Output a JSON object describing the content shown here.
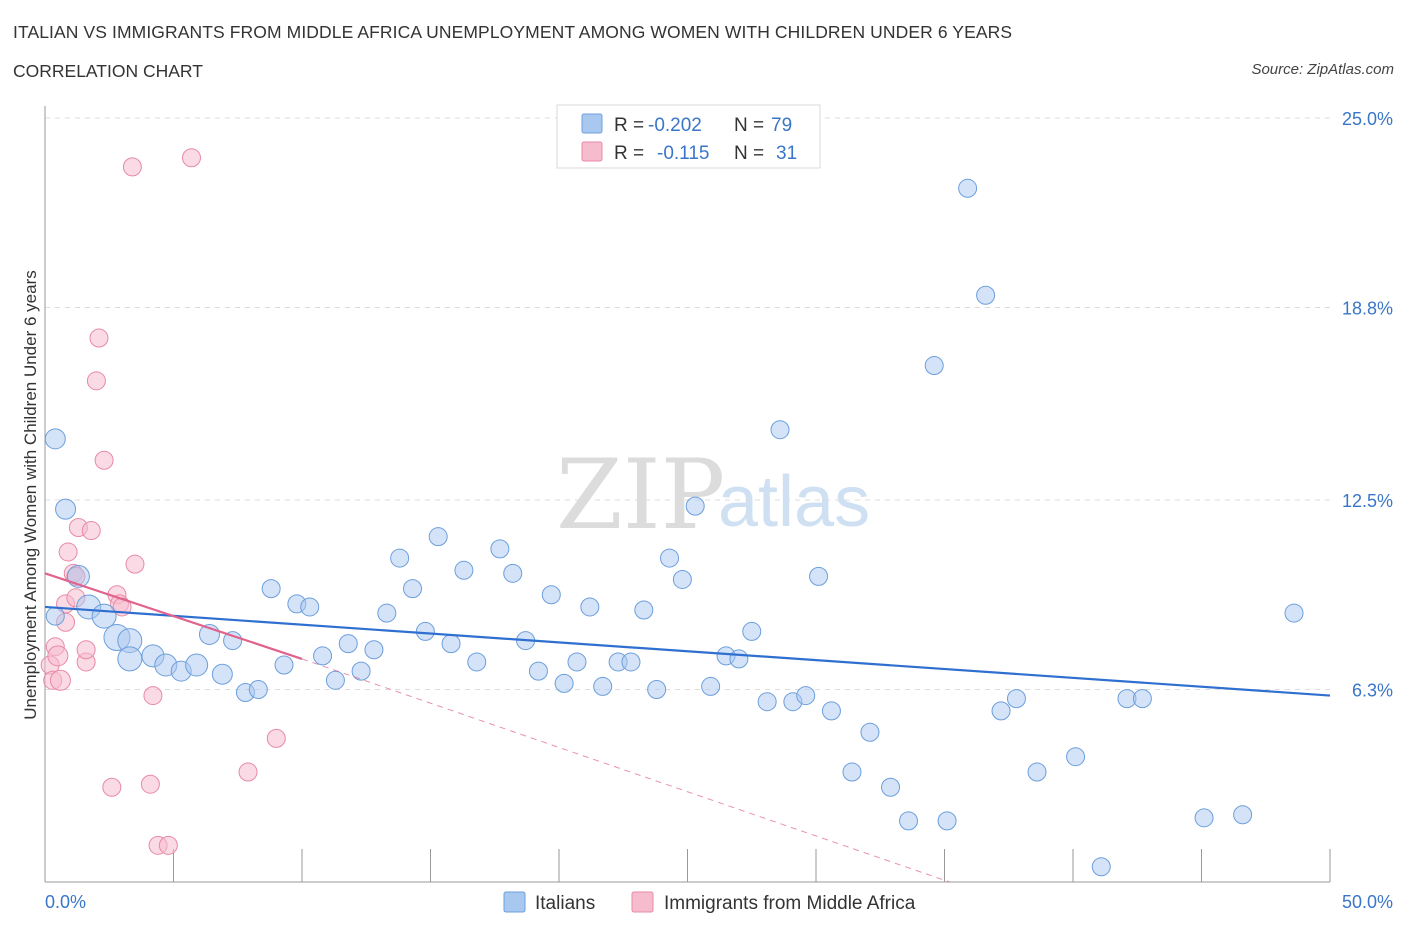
{
  "header": {
    "title": "ITALIAN VS IMMIGRANTS FROM MIDDLE AFRICA UNEMPLOYMENT AMONG WOMEN WITH CHILDREN UNDER 6 YEARS",
    "subtitle": "CORRELATION CHART",
    "source": "Source: ZipAtlas.com"
  },
  "watermark": {
    "zip": "ZIP",
    "atlas": "atlas"
  },
  "stats": {
    "r_label": "R =",
    "n_label": "N =",
    "rows": [
      {
        "r": "-0.202",
        "n": "79",
        "color": "#a9c8f0"
      },
      {
        "r": "-0.115",
        "n": "31",
        "color": "#f6bccd"
      }
    ]
  },
  "legend": {
    "items": [
      {
        "label": "Italians",
        "color": "#a9c8f0"
      },
      {
        "label": "Immigrants from Middle Africa",
        "color": "#f6bccd"
      }
    ]
  },
  "colors": {
    "blue_fill": "#a9c8f0",
    "blue_stroke": "#6c9fdc",
    "blue_line": "#2f6fd0",
    "pink_fill": "#f6bccd",
    "pink_stroke": "#e88aa6",
    "pink_line": "#e0628d",
    "grid": "#dcdcdc",
    "axis_text": "#3a76c8"
  },
  "chart_data": {
    "type": "scatter",
    "title": "ITALIAN VS IMMIGRANTS FROM MIDDLE AFRICA UNEMPLOYMENT AMONG WOMEN WITH CHILDREN UNDER 6 YEARS",
    "xlabel": "",
    "ylabel": "Unemployment Among Women with Children Under 6 years",
    "xlim": [
      0,
      50
    ],
    "ylim": [
      0,
      25
    ],
    "x_tick_labels": [
      "0.0%",
      "50.0%"
    ],
    "y_ticks": [
      6.3,
      12.5,
      18.8,
      25.0
    ],
    "y_tick_labels": [
      "6.3%",
      "12.5%",
      "18.8%",
      "25.0%"
    ],
    "grid": "horizontal dashed",
    "legend_position": "bottom",
    "series": [
      {
        "name": "Italians",
        "r": -0.202,
        "n": 79,
        "trend": {
          "x": [
            0,
            50
          ],
          "y": [
            9.0,
            6.1
          ]
        },
        "points": [
          [
            0.4,
            14.5
          ],
          [
            0.8,
            12.2
          ],
          [
            1.3,
            10.0
          ],
          [
            1.7,
            9.0
          ],
          [
            2.3,
            8.7
          ],
          [
            2.8,
            8.0
          ],
          [
            3.3,
            7.9
          ],
          [
            3.3,
            7.3
          ],
          [
            4.2,
            7.4
          ],
          [
            4.7,
            7.1
          ],
          [
            5.3,
            6.9
          ],
          [
            5.9,
            7.1
          ],
          [
            6.4,
            8.1
          ],
          [
            6.9,
            6.8
          ],
          [
            7.3,
            7.9
          ],
          [
            7.8,
            6.2
          ],
          [
            8.3,
            6.3
          ],
          [
            8.8,
            9.6
          ],
          [
            9.3,
            7.1
          ],
          [
            9.8,
            9.1
          ],
          [
            10.3,
            9.0
          ],
          [
            10.8,
            7.4
          ],
          [
            11.3,
            6.6
          ],
          [
            11.8,
            7.8
          ],
          [
            12.3,
            6.9
          ],
          [
            12.8,
            7.6
          ],
          [
            13.3,
            8.8
          ],
          [
            13.8,
            10.6
          ],
          [
            14.3,
            9.6
          ],
          [
            14.8,
            8.2
          ],
          [
            15.3,
            11.3
          ],
          [
            15.8,
            7.8
          ],
          [
            16.3,
            10.2
          ],
          [
            16.8,
            7.2
          ],
          [
            17.7,
            10.9
          ],
          [
            18.2,
            10.1
          ],
          [
            18.7,
            7.9
          ],
          [
            19.2,
            6.9
          ],
          [
            19.7,
            9.4
          ],
          [
            20.2,
            6.5
          ],
          [
            20.7,
            7.2
          ],
          [
            21.2,
            9.0
          ],
          [
            21.7,
            6.4
          ],
          [
            22.3,
            7.2
          ],
          [
            22.8,
            7.2
          ],
          [
            23.3,
            8.9
          ],
          [
            23.8,
            6.3
          ],
          [
            24.3,
            10.6
          ],
          [
            24.8,
            9.9
          ],
          [
            25.3,
            12.3
          ],
          [
            25.9,
            6.4
          ],
          [
            26.5,
            7.4
          ],
          [
            27.0,
            7.3
          ],
          [
            27.5,
            8.2
          ],
          [
            28.1,
            5.9
          ],
          [
            28.6,
            14.8
          ],
          [
            29.1,
            5.9
          ],
          [
            29.6,
            6.1
          ],
          [
            30.1,
            10.0
          ],
          [
            30.6,
            5.6
          ],
          [
            31.4,
            3.6
          ],
          [
            32.1,
            4.9
          ],
          [
            32.9,
            3.1
          ],
          [
            33.6,
            2.0
          ],
          [
            34.6,
            16.9
          ],
          [
            35.1,
            2.0
          ],
          [
            35.9,
            22.7
          ],
          [
            36.6,
            19.2
          ],
          [
            37.2,
            5.6
          ],
          [
            37.8,
            6.0
          ],
          [
            38.6,
            3.6
          ],
          [
            40.1,
            4.1
          ],
          [
            41.1,
            0.5
          ],
          [
            42.1,
            6.0
          ],
          [
            42.7,
            6.0
          ],
          [
            45.1,
            2.1
          ],
          [
            46.6,
            2.2
          ],
          [
            48.6,
            8.8
          ],
          [
            0.4,
            8.7
          ]
        ],
        "sizes": [
          10,
          10,
          11,
          12,
          12,
          13,
          12,
          12,
          11,
          11,
          10,
          11,
          10,
          10,
          9,
          9,
          9,
          9,
          9,
          9,
          9,
          9,
          9,
          9,
          9,
          9,
          9,
          9,
          9,
          9,
          9,
          9,
          9,
          9,
          9,
          9,
          9,
          9,
          9,
          9,
          9,
          9,
          9,
          9,
          9,
          9,
          9,
          9,
          9,
          9,
          9,
          9,
          9,
          9,
          9,
          9,
          9,
          9,
          9,
          9,
          9,
          9,
          9,
          9,
          9,
          9,
          9,
          9,
          9,
          9,
          9,
          9,
          9,
          9,
          9,
          9,
          9,
          9,
          9
        ]
      },
      {
        "name": "Immigrants from Middle Africa",
        "r": -0.115,
        "n": 31,
        "trend_solid": {
          "x": [
            0,
            10
          ],
          "y": [
            10.1,
            7.3
          ]
        },
        "trend_dashed": {
          "x": [
            10,
            35.2
          ],
          "y": [
            7.3,
            0.0
          ]
        },
        "points": [
          [
            0.2,
            7.1
          ],
          [
            0.3,
            6.6
          ],
          [
            0.4,
            7.7
          ],
          [
            0.5,
            7.4
          ],
          [
            0.6,
            6.6
          ],
          [
            0.8,
            9.1
          ],
          [
            0.8,
            8.5
          ],
          [
            0.9,
            10.8
          ],
          [
            1.1,
            10.1
          ],
          [
            1.2,
            9.3
          ],
          [
            1.2,
            10.0
          ],
          [
            1.3,
            11.6
          ],
          [
            1.6,
            7.2
          ],
          [
            1.6,
            7.6
          ],
          [
            1.8,
            11.5
          ],
          [
            2.0,
            16.4
          ],
          [
            2.1,
            17.8
          ],
          [
            2.3,
            13.8
          ],
          [
            2.6,
            3.1
          ],
          [
            2.8,
            9.4
          ],
          [
            2.9,
            9.1
          ],
          [
            3.0,
            9.0
          ],
          [
            3.5,
            10.4
          ],
          [
            3.4,
            23.4
          ],
          [
            4.1,
            3.2
          ],
          [
            4.2,
            6.1
          ],
          [
            4.4,
            1.2
          ],
          [
            4.8,
            1.2
          ],
          [
            5.7,
            23.7
          ],
          [
            7.9,
            3.6
          ],
          [
            9.0,
            4.7
          ]
        ],
        "sizes": [
          9,
          9,
          9,
          10,
          10,
          9,
          9,
          9,
          9,
          9,
          9,
          9,
          9,
          9,
          9,
          9,
          9,
          9,
          9,
          9,
          9,
          9,
          9,
          9,
          9,
          9,
          9,
          9,
          9,
          9,
          9
        ]
      }
    ]
  }
}
